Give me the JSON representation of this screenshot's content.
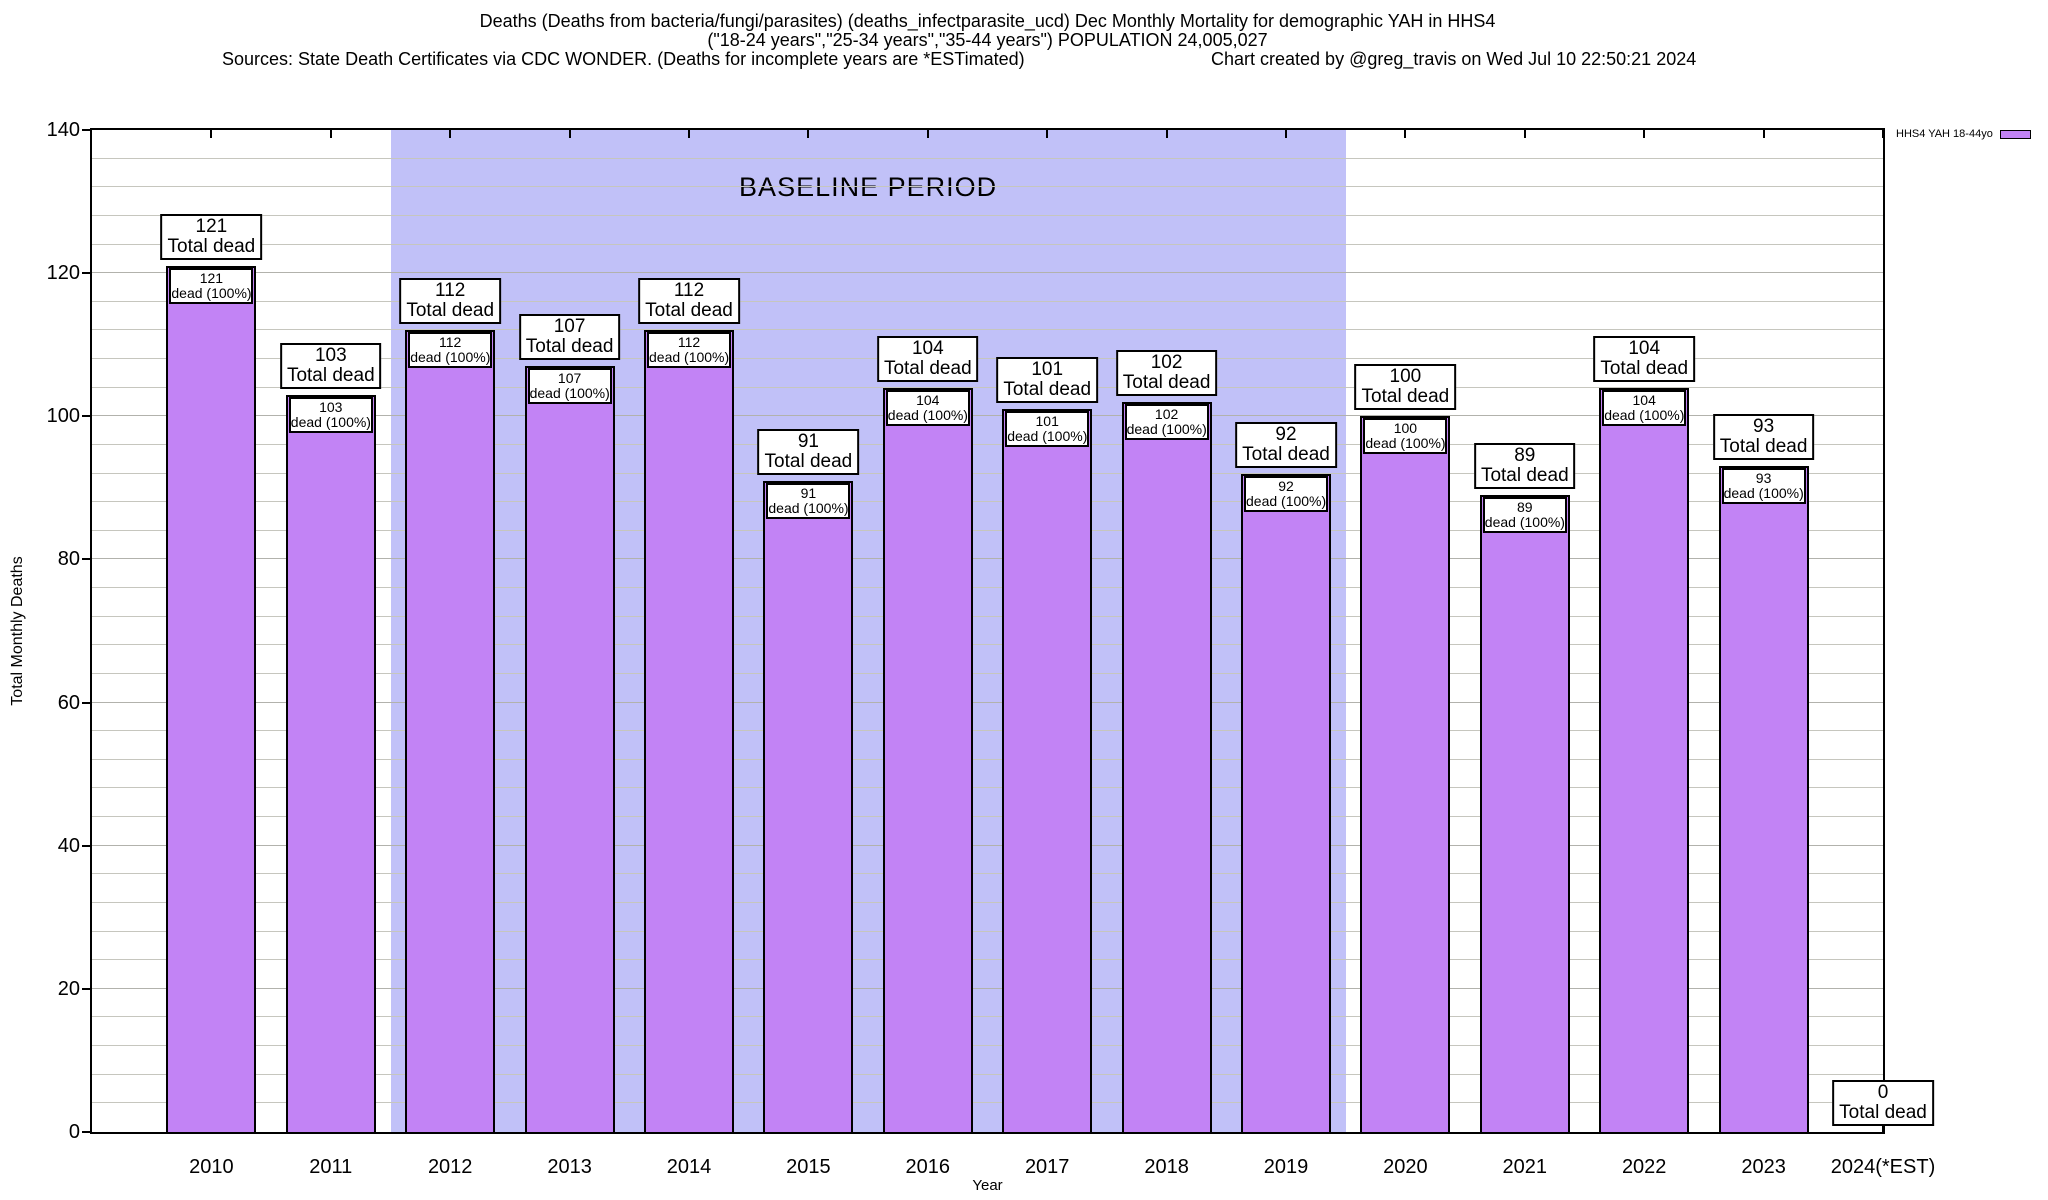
{
  "header": {
    "title_line1": "Deaths (Deaths from bacteria/fungi/parasites) (deaths_infectparasite_ucd) Dec Monthly Mortality for demographic YAH in HHS4",
    "title_line2": "(\"18-24 years\",\"25-34 years\",\"35-44 years\") POPULATION 24,005,027",
    "footnote_left": "Sources: State Death Certificates via CDC WONDER. (Deaths for incomplete years are *ESTimated)",
    "footnote_right": "Chart created by @greg_travis on Wed Jul 10 22:50:21 2024"
  },
  "chart_data": {
    "type": "bar",
    "title": "Deaths (Deaths from bacteria/fungi/parasites) (deaths_infectparasite_ucd) Dec Monthly Mortality for demographic YAH in HHS4",
    "subtitle": "(\"18-24 years\",\"25-34 years\",\"35-44 years\") POPULATION 24,005,027",
    "footnote_left": "Sources: State Death Certificates via CDC WONDER. (Deaths for incomplete years are *ESTimated)",
    "footnote_right": "Chart created by @greg_travis on Wed Jul 10 22:50:21 2024",
    "xlabel": "Year",
    "ylabel": "Total Monthly Deaths",
    "ylim": [
      0,
      140
    ],
    "ytick_interval": 20,
    "minor_gridline_step": 4,
    "grid": true,
    "categories": [
      "2010",
      "2011",
      "2012",
      "2013",
      "2014",
      "2015",
      "2016",
      "2017",
      "2018",
      "2019",
      "2020",
      "2021",
      "2022",
      "2023",
      "2024(*EST)"
    ],
    "values": [
      121,
      103,
      112,
      107,
      112,
      91,
      104,
      101,
      102,
      92,
      100,
      89,
      104,
      93,
      0
    ],
    "series": [
      {
        "name": "HHS4 YAH 18-44yo",
        "color": "#C283F5"
      }
    ],
    "bar_top_label_suffix": "Total dead",
    "bar_inner_label_suffix": "dead (100%)",
    "baseline_band": {
      "label": "BASELINE PERIOD",
      "start_category": "2012",
      "end_category": "2019"
    },
    "legend_position": "top-right-outside"
  },
  "colors": {
    "bar_fill": "#C283F5",
    "bar_border": "#000000",
    "baseline_band": "#C1C1F8",
    "gridline": "#C6C6BE",
    "axis": "#000000",
    "background": "#FFFFFF",
    "text": "#000000"
  }
}
